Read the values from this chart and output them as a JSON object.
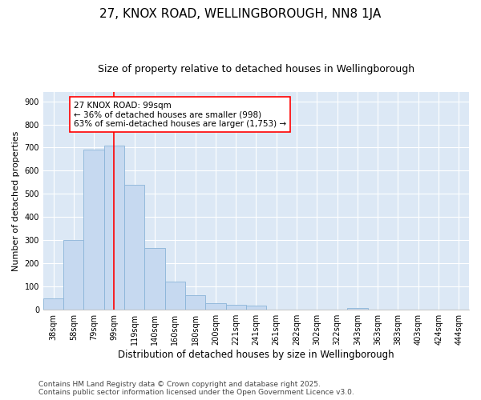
{
  "title": "27, KNOX ROAD, WELLINGBOROUGH, NN8 1JA",
  "subtitle": "Size of property relative to detached houses in Wellingborough",
  "xlabel": "Distribution of detached houses by size in Wellingborough",
  "ylabel": "Number of detached properties",
  "categories": [
    "38sqm",
    "58sqm",
    "79sqm",
    "99sqm",
    "119sqm",
    "140sqm",
    "160sqm",
    "180sqm",
    "200sqm",
    "221sqm",
    "241sqm",
    "261sqm",
    "282sqm",
    "302sqm",
    "322sqm",
    "343sqm",
    "363sqm",
    "383sqm",
    "403sqm",
    "424sqm",
    "444sqm"
  ],
  "values": [
    48,
    300,
    693,
    707,
    538,
    265,
    122,
    62,
    28,
    22,
    17,
    2,
    2,
    0,
    0,
    8,
    0,
    2,
    0,
    0,
    2
  ],
  "bar_color": "#c6d9f0",
  "bar_edge_color": "#8ab4d8",
  "vline_x_index": 3,
  "vline_color": "red",
  "annotation_line1": "27 KNOX ROAD: 99sqm",
  "annotation_line2": "← 36% of detached houses are smaller (998)",
  "annotation_line3": "63% of semi-detached houses are larger (1,753) →",
  "annotation_box_color": "white",
  "annotation_box_edge_color": "red",
  "ylim": [
    0,
    940
  ],
  "yticks": [
    0,
    100,
    200,
    300,
    400,
    500,
    600,
    700,
    800,
    900
  ],
  "background_color": "#dce8f5",
  "footer": "Contains HM Land Registry data © Crown copyright and database right 2025.\nContains public sector information licensed under the Open Government Licence v3.0.",
  "title_fontsize": 11,
  "subtitle_fontsize": 9,
  "xlabel_fontsize": 8.5,
  "ylabel_fontsize": 8,
  "tick_fontsize": 7,
  "annotation_fontsize": 7.5,
  "footer_fontsize": 6.5
}
